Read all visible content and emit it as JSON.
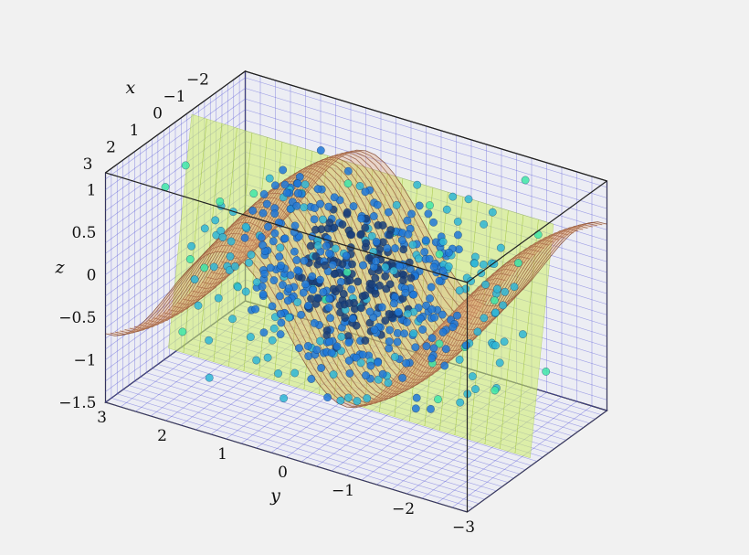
{
  "chart_data": {
    "type": "surface3d",
    "title": "",
    "description": "",
    "axes": {
      "x": {
        "label": "x",
        "ticks": [
          "−2",
          "−1",
          "0",
          "1",
          "2",
          "3"
        ],
        "range": [
          -3,
          3
        ]
      },
      "y": {
        "label": "y",
        "ticks": [
          "3",
          "2",
          "1",
          "0",
          "−1",
          "−2",
          "−3"
        ],
        "range": [
          -3,
          3
        ]
      },
      "z": {
        "label": "z",
        "ticks": [
          "1",
          "0.5",
          "0",
          "−0.5",
          "−1",
          "−1.5"
        ],
        "range": [
          -1.5,
          1.2
        ]
      }
    },
    "grid": true,
    "surfaces": [
      {
        "kind": "wave",
        "color": "#e0a070",
        "z_amplitude": 1.0,
        "x_range": [
          -3,
          3
        ],
        "y_range": [
          -3,
          3
        ]
      },
      {
        "kind": "plane",
        "color": "#cfee6a",
        "x_range": [
          -3,
          3
        ],
        "y_range": [
          -3,
          3
        ]
      }
    ],
    "scatter": {
      "points": 600,
      "distribution": "normal",
      "colormap": [
        "#1a3f7a",
        "#1e78d8",
        "#2fb6d6",
        "#3fe6a8"
      ]
    }
  }
}
